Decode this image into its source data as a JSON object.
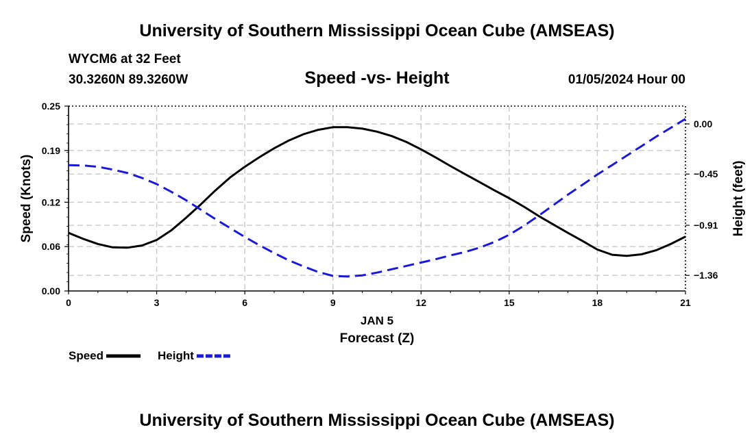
{
  "header": {
    "title": "University of Southern Mississippi Ocean Cube (AMSEAS)",
    "station": "WYCM6 at 32 Feet",
    "location": "30.3260N  89.3260W",
    "date": "01/05/2024 Hour 00"
  },
  "footer": {
    "title": "University of Southern Mississippi Ocean Cube (AMSEAS)"
  },
  "chart_data": {
    "type": "line",
    "title": "Speed -vs- Height",
    "xlabel": "Forecast (Z)",
    "x_sublabel": "JAN 5",
    "ylabel": "Speed (Knots)",
    "y2label": "Height (feet)",
    "xlim": [
      0,
      21
    ],
    "x_ticks": [
      0,
      3,
      6,
      9,
      12,
      15,
      18,
      21
    ],
    "ylim": [
      0,
      0.25
    ],
    "y_ticks": [
      0.0,
      0.06,
      0.12,
      0.19,
      0.25
    ],
    "y_tick_labels": [
      "0.00",
      "0.06",
      "0.12",
      "0.19",
      "0.25"
    ],
    "y2lim": [
      -1.5,
      0.16
    ],
    "y2_ticks": [
      0.0,
      -0.45,
      -0.91,
      -1.36
    ],
    "y2_tick_labels": [
      "0.00",
      "−0.45",
      "−0.91",
      "−1.36"
    ],
    "grid": true,
    "legend": {
      "placement": "bottom-left",
      "items": [
        "Speed",
        "Height"
      ]
    },
    "series": [
      {
        "name": "Speed",
        "axis": "left",
        "color": "#000000",
        "dash": "solid",
        "x": [
          0,
          0.5,
          1,
          1.5,
          2,
          2.5,
          3,
          3.5,
          4,
          4.5,
          5,
          5.5,
          6,
          6.5,
          7,
          7.5,
          8,
          8.5,
          9,
          9.5,
          10,
          10.5,
          11,
          11.5,
          12,
          12.5,
          13,
          13.5,
          14,
          14.5,
          15,
          15.5,
          16,
          16.5,
          17,
          17.5,
          18,
          18.5,
          19,
          19.5,
          20,
          20.5,
          21
        ],
        "values": [
          0.0785,
          0.0705,
          0.0635,
          0.059,
          0.0585,
          0.0615,
          0.069,
          0.082,
          0.099,
          0.117,
          0.136,
          0.1535,
          0.168,
          0.181,
          0.193,
          0.2035,
          0.212,
          0.218,
          0.2215,
          0.2215,
          0.2195,
          0.2155,
          0.2095,
          0.2015,
          0.1915,
          0.1805,
          0.169,
          0.158,
          0.147,
          0.136,
          0.1255,
          0.114,
          0.1015,
          0.09,
          0.0785,
          0.0675,
          0.056,
          0.049,
          0.0475,
          0.0495,
          0.055,
          0.0635,
          0.0735
        ]
      },
      {
        "name": "Height",
        "axis": "right",
        "color": "#1a1ad6",
        "dash": "dashed",
        "x": [
          0,
          0.5,
          1,
          1.5,
          2,
          2.5,
          3,
          3.5,
          4,
          4.5,
          5,
          5.5,
          6,
          6.5,
          7,
          7.5,
          8,
          8.5,
          9,
          9.5,
          10,
          10.5,
          11,
          11.5,
          12,
          12.5,
          13,
          13.5,
          14,
          14.5,
          15,
          15.5,
          16,
          16.5,
          17,
          17.5,
          18,
          18.5,
          19,
          19.5,
          20,
          20.5,
          21
        ],
        "values": [
          -0.37,
          -0.373,
          -0.385,
          -0.41,
          -0.44,
          -0.485,
          -0.54,
          -0.61,
          -0.685,
          -0.77,
          -0.855,
          -0.935,
          -1.015,
          -1.09,
          -1.16,
          -1.225,
          -1.28,
          -1.33,
          -1.365,
          -1.37,
          -1.36,
          -1.335,
          -1.305,
          -1.275,
          -1.245,
          -1.215,
          -1.18,
          -1.15,
          -1.11,
          -1.06,
          -0.995,
          -0.915,
          -0.825,
          -0.73,
          -0.635,
          -0.545,
          -0.455,
          -0.37,
          -0.285,
          -0.2,
          -0.115,
          -0.035,
          0.045
        ]
      }
    ]
  }
}
